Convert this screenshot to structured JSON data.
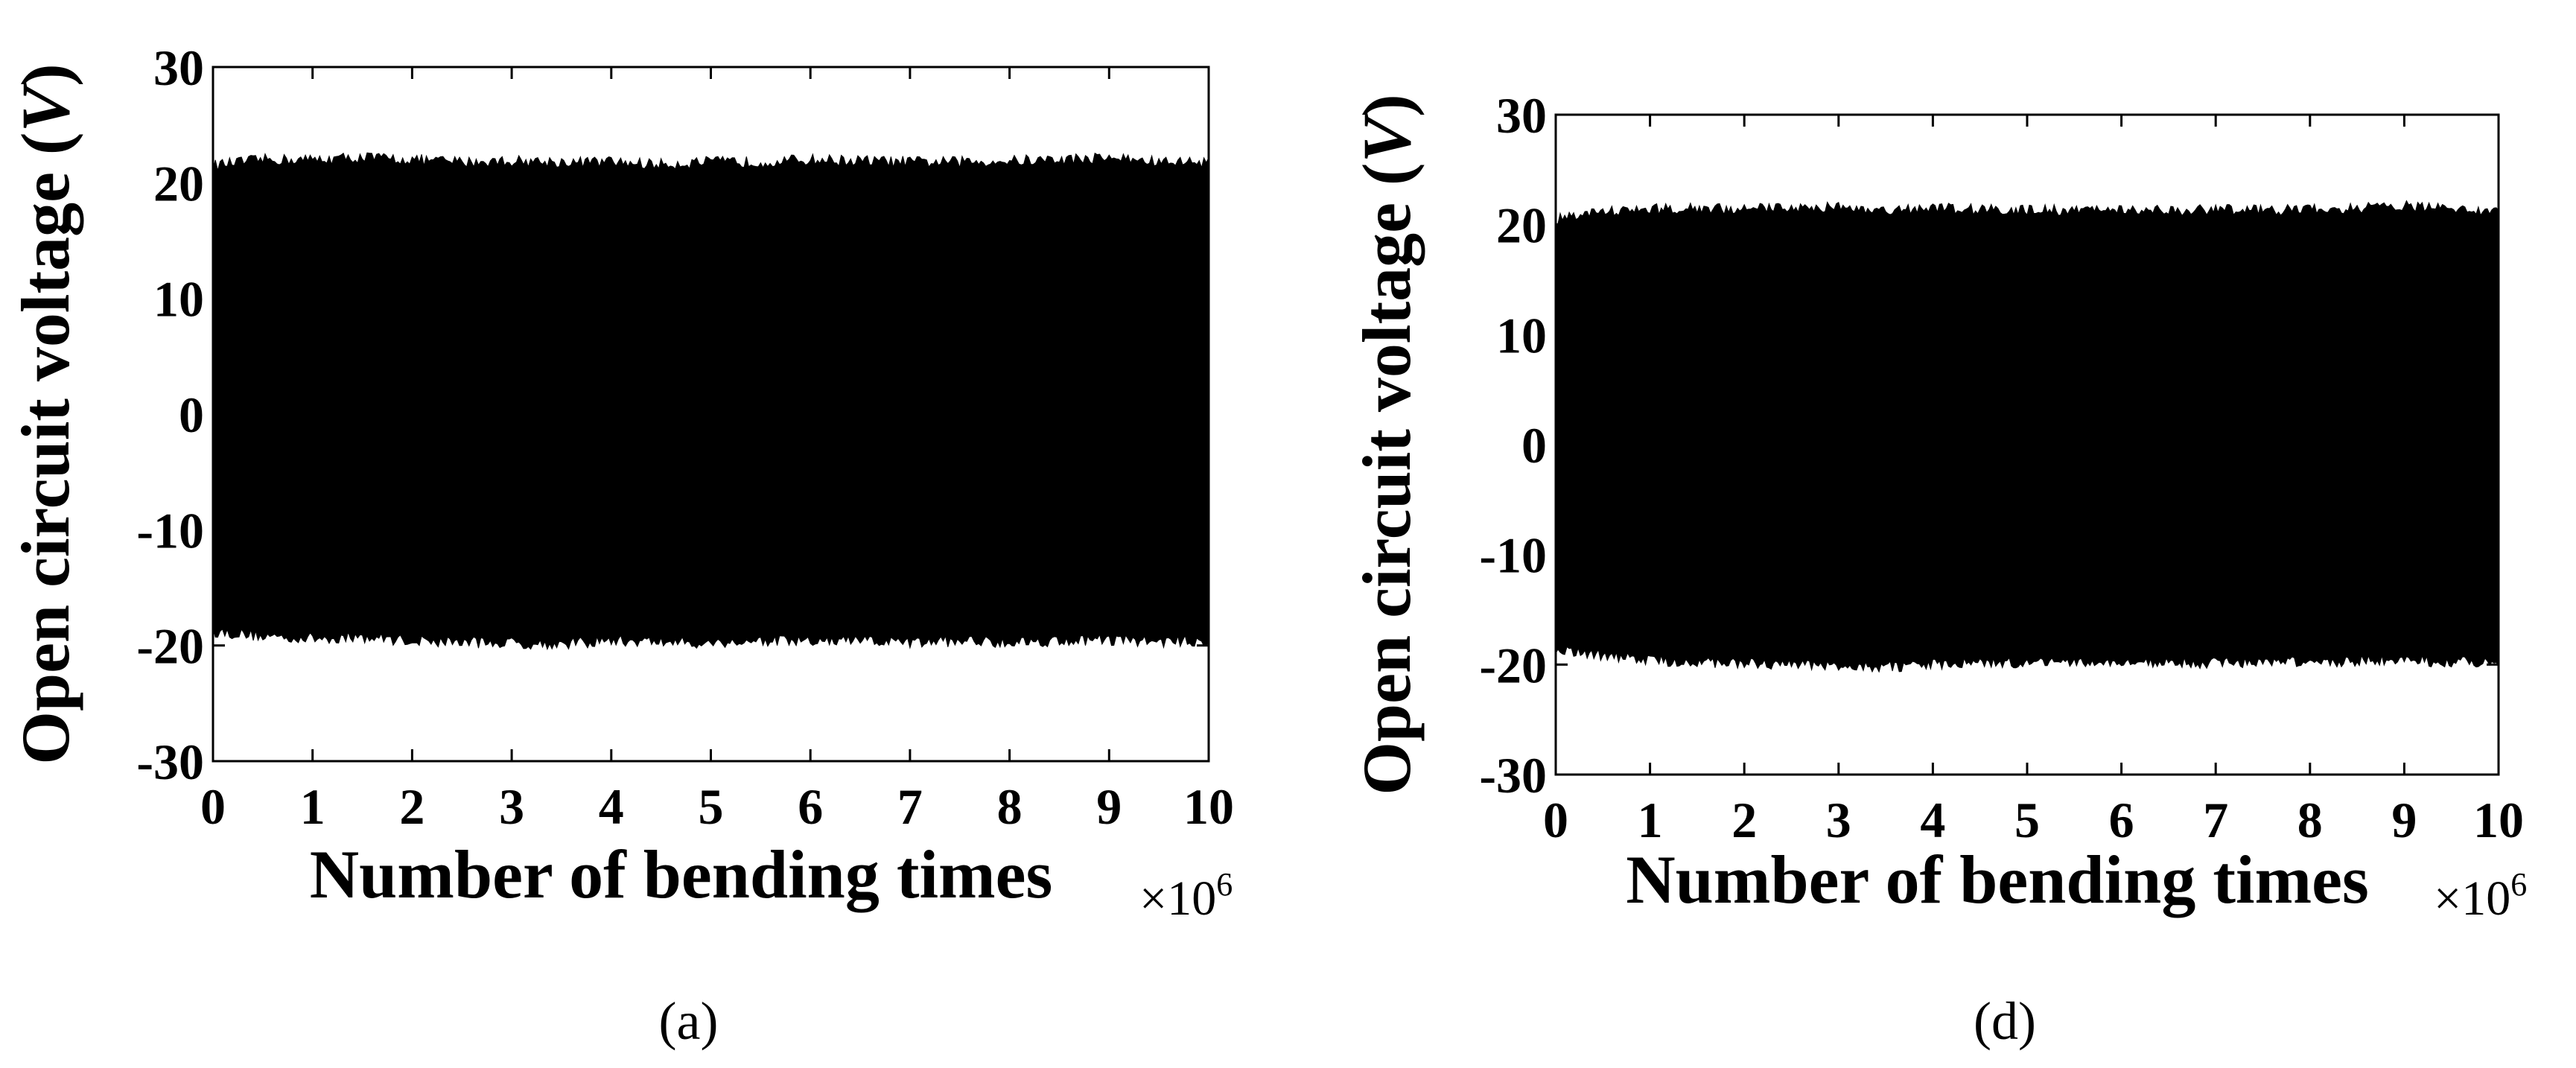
{
  "chart_data": [
    {
      "type": "area",
      "panel_label": "(a)",
      "xlabel": "Number of bending times",
      "x_multiplier": "×10",
      "x_multiplier_exp": "6",
      "ylabel": "Open circuit voltage (",
      "ylabel_unit": "V",
      "ylabel_close": ")",
      "xlim": [
        0,
        10
      ],
      "ylim": [
        -30,
        30
      ],
      "x_ticks": [
        "0",
        "1",
        "2",
        "3",
        "4",
        "5",
        "6",
        "7",
        "8",
        "9",
        "10"
      ],
      "y_ticks": [
        "30",
        "20",
        "10",
        "0",
        "-10",
        "-20",
        "-30"
      ],
      "grid": false,
      "series": [
        {
          "x": [
            0,
            0.5,
            1,
            1.5,
            2,
            2.5,
            3,
            3.5,
            4,
            4.5,
            5,
            5.5,
            6,
            6.5,
            7,
            7.5,
            8,
            8.5,
            9,
            9.5,
            10
          ],
          "upper": [
            21.5,
            22.0,
            22.0,
            22.2,
            22.0,
            21.8,
            21.9,
            21.8,
            21.8,
            21.6,
            21.8,
            21.8,
            22.0,
            21.9,
            21.8,
            21.8,
            21.9,
            22.0,
            22.2,
            21.8,
            21.8
          ],
          "lower": [
            -18.8,
            -19.2,
            -19.4,
            -19.3,
            -19.6,
            -19.7,
            -19.8,
            -19.9,
            -19.6,
            -19.7,
            -19.8,
            -19.6,
            -19.7,
            -19.6,
            -19.8,
            -19.6,
            -19.7,
            -19.6,
            -19.5,
            -19.7,
            -19.6
          ]
        }
      ]
    },
    {
      "type": "area",
      "panel_label": "(d)",
      "xlabel": "Number of bending times",
      "x_multiplier": "×10",
      "x_multiplier_exp": "6",
      "ylabel": "Open circuit voltage (",
      "ylabel_unit": "V",
      "ylabel_close": ")",
      "xlim": [
        0,
        10
      ],
      "ylim": [
        -30,
        30
      ],
      "x_ticks": [
        "0",
        "1",
        "2",
        "3",
        "4",
        "5",
        "6",
        "7",
        "8",
        "9",
        "10"
      ],
      "y_ticks": [
        "30",
        "20",
        "10",
        "0",
        "-10",
        "-20",
        "-30"
      ],
      "grid": false,
      "series": [
        {
          "x": [
            0,
            0.5,
            1,
            1.5,
            2,
            2.5,
            3,
            3.5,
            4,
            4.5,
            5,
            5.5,
            6,
            6.5,
            7,
            7.5,
            8,
            8.5,
            9,
            9.5,
            10
          ],
          "upper": [
            20.5,
            21.2,
            21.4,
            21.5,
            21.4,
            21.6,
            21.6,
            21.4,
            21.5,
            21.4,
            21.4,
            21.3,
            21.4,
            21.3,
            21.4,
            21.3,
            21.4,
            21.5,
            21.7,
            21.4,
            21.3
          ],
          "lower": [
            -18.5,
            -19.2,
            -19.6,
            -19.8,
            -19.9,
            -20.0,
            -20.1,
            -20.2,
            -20.0,
            -19.9,
            -19.8,
            -19.8,
            -19.9,
            -19.8,
            -19.9,
            -19.8,
            -19.8,
            -19.7,
            -19.6,
            -19.8,
            -19.7
          ]
        }
      ]
    }
  ]
}
